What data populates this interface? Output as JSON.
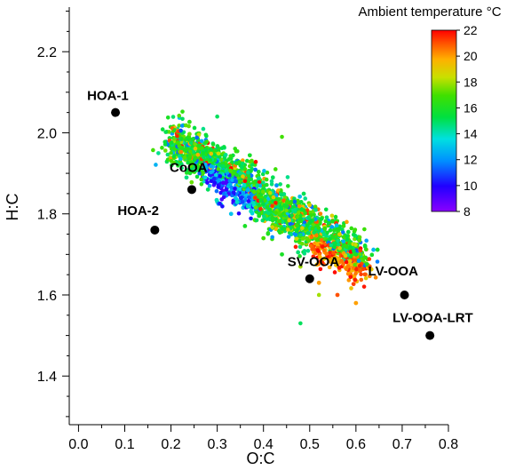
{
  "chart_data": {
    "type": "scatter",
    "xlabel": "O:C",
    "ylabel": "H:C",
    "xlim": [
      -0.02,
      0.8
    ],
    "ylim": [
      1.28,
      2.31
    ],
    "x_ticks": [
      "0.0",
      "0.1",
      "0.2",
      "0.3",
      "0.4",
      "0.5",
      "0.6",
      "0.7",
      "0.8"
    ],
    "y_ticks": [
      "1.4",
      "1.6",
      "1.8",
      "2.0",
      "2.2"
    ],
    "colorbar": {
      "title": "Ambient temperature °C",
      "range": [
        8,
        22
      ],
      "ticks": [
        "8",
        "10",
        "12",
        "14",
        "16",
        "18",
        "20",
        "22"
      ],
      "colormap": "rainbow"
    },
    "grid": false,
    "reference_points": [
      {
        "label": "HOA-1",
        "x": 0.08,
        "y": 2.05
      },
      {
        "label": "HOA-2",
        "x": 0.165,
        "y": 1.76
      },
      {
        "label": "CoOA",
        "x": 0.245,
        "y": 1.86
      },
      {
        "label": "SV-OOA",
        "x": 0.5,
        "y": 1.64
      },
      {
        "label": "LV-OOA",
        "x": 0.705,
        "y": 1.6
      },
      {
        "label": "LV-OOA-LRT",
        "x": 0.76,
        "y": 1.5
      }
    ],
    "scatter_cloud": {
      "description_points": "dense band of measurements from O:C 0.2-0.6, H:C 1.55-2.02, colored by ambient temperature",
      "sample": [
        {
          "x": 0.22,
          "y": 1.96,
          "t": 16
        },
        {
          "x": 0.25,
          "y": 1.93,
          "t": 17
        },
        {
          "x": 0.28,
          "y": 1.86,
          "t": 15
        },
        {
          "x": 0.3,
          "y": 1.83,
          "t": 14
        },
        {
          "x": 0.33,
          "y": 1.8,
          "t": 13
        },
        {
          "x": 0.36,
          "y": 1.77,
          "t": 16
        },
        {
          "x": 0.4,
          "y": 1.74,
          "t": 17
        },
        {
          "x": 0.44,
          "y": 1.7,
          "t": 16
        },
        {
          "x": 0.48,
          "y": 1.67,
          "t": 18
        },
        {
          "x": 0.52,
          "y": 1.63,
          "t": 20
        },
        {
          "x": 0.56,
          "y": 1.6,
          "t": 21
        },
        {
          "x": 0.6,
          "y": 1.58,
          "t": 20
        }
      ]
    }
  }
}
